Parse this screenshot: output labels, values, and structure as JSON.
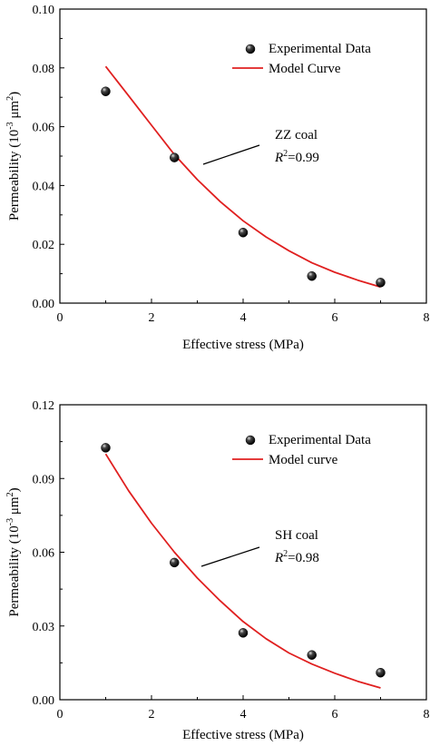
{
  "chart_data": [
    {
      "type": "scatter",
      "xlabel": "Effective stress (MPa)",
      "ylabel_parts": {
        "prefix": "Permeability (10",
        "exp": "-3",
        "mid": " μm",
        "exp2": "2",
        "suffix": ")"
      },
      "xlim": [
        0,
        8
      ],
      "ylim": [
        0,
        0.1
      ],
      "xticks": [
        "0",
        "2",
        "4",
        "6",
        "8"
      ],
      "xtick_values": [
        0,
        2,
        4,
        6,
        8
      ],
      "yticks": [
        "0.00",
        "0.02",
        "0.04",
        "0.06",
        "0.08",
        "0.10"
      ],
      "ytick_values": [
        0,
        0.02,
        0.04,
        0.06,
        0.08,
        0.1
      ],
      "series": [
        {
          "name": "Experimental Data",
          "kind": "points",
          "x": [
            1,
            2.5,
            4,
            5.5,
            7
          ],
          "y": [
            0.072,
            0.0495,
            0.024,
            0.0092,
            0.007
          ]
        },
        {
          "name": "Model Curve",
          "kind": "line",
          "color": "#e02020",
          "x": [
            1,
            1.5,
            2,
            2.5,
            3,
            3.5,
            4,
            4.5,
            5,
            5.5,
            6,
            6.5,
            7
          ],
          "y": [
            0.0805,
            0.0705,
            0.0605,
            0.0505,
            0.042,
            0.0345,
            0.028,
            0.0225,
            0.0178,
            0.0137,
            0.0105,
            0.0078,
            0.0055
          ]
        }
      ],
      "annotation": {
        "label": "ZZ coal",
        "r2_prefix": "R",
        "r2_exp": "2",
        "r2_value": "=0.99"
      }
    },
    {
      "type": "scatter",
      "xlabel": "Effective stress (MPa)",
      "ylabel_parts": {
        "prefix": "Permeability (10",
        "exp": "-3",
        "mid": " μm",
        "exp2": "2",
        "suffix": ")"
      },
      "xlim": [
        0,
        8
      ],
      "ylim": [
        0,
        0.12
      ],
      "xticks": [
        "0",
        "2",
        "4",
        "6",
        "8"
      ],
      "xtick_values": [
        0,
        2,
        4,
        6,
        8
      ],
      "yticks": [
        "0.00",
        "0.03",
        "0.06",
        "0.09",
        "0.12"
      ],
      "ytick_values": [
        0,
        0.03,
        0.06,
        0.09,
        0.12
      ],
      "series": [
        {
          "name": "Experimental Data",
          "kind": "points",
          "x": [
            1,
            2.5,
            4,
            5.5,
            7
          ],
          "y": [
            0.1025,
            0.0558,
            0.0272,
            0.0182,
            0.011
          ]
        },
        {
          "name": "Model curve",
          "kind": "line",
          "color": "#e02020",
          "x": [
            1,
            1.5,
            2,
            2.5,
            3,
            3.5,
            4,
            4.5,
            5,
            5.5,
            6,
            6.5,
            7
          ],
          "y": [
            0.1,
            0.085,
            0.0718,
            0.06,
            0.0495,
            0.0402,
            0.0318,
            0.0248,
            0.019,
            0.0145,
            0.0108,
            0.0075,
            0.0048
          ]
        }
      ],
      "annotation": {
        "label": "SH coal",
        "r2_prefix": "R",
        "r2_exp": "2",
        "r2_value": "=0.98"
      }
    }
  ]
}
